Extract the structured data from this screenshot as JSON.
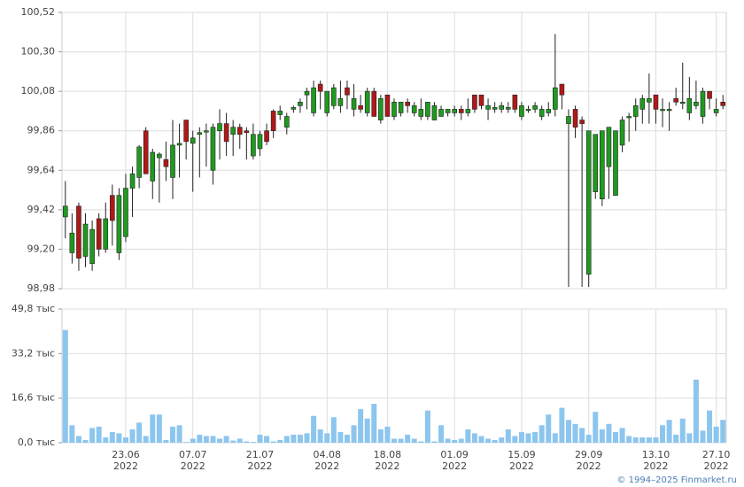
{
  "chart_data": [
    {
      "type": "candlestick",
      "categories": [
        null,
        null,
        null,
        null,
        null,
        null,
        null,
        null,
        null,
        "23.06",
        null,
        null,
        null,
        null,
        null,
        null,
        null,
        null,
        null,
        "07.07",
        null,
        null,
        null,
        null,
        null,
        null,
        null,
        null,
        null,
        "21.07",
        null,
        null,
        null,
        null,
        null,
        null,
        null,
        null,
        null,
        "04.08",
        null,
        null,
        null,
        null,
        null,
        null,
        null,
        null,
        "18.08",
        null,
        null,
        null,
        null,
        null,
        null,
        null,
        null,
        null,
        "01.09",
        null,
        null,
        null,
        null,
        null,
        null,
        null,
        null,
        null,
        "15.09",
        null,
        null,
        null,
        null,
        null,
        null,
        null,
        null,
        null,
        "29.09",
        null,
        null,
        null,
        null,
        null,
        null,
        null,
        null,
        null,
        "13.10",
        null,
        null,
        null,
        null,
        null,
        null,
        null,
        null,
        "27.10",
        null
      ],
      "category_years": [
        null,
        null,
        null,
        null,
        null,
        null,
        null,
        null,
        null,
        "2022",
        null,
        null,
        null,
        null,
        null,
        null,
        null,
        null,
        null,
        "2022",
        null,
        null,
        null,
        null,
        null,
        null,
        null,
        null,
        null,
        "2022",
        null,
        null,
        null,
        null,
        null,
        null,
        null,
        null,
        null,
        "2022",
        null,
        null,
        null,
        null,
        null,
        null,
        null,
        null,
        "2022",
        null,
        null,
        null,
        null,
        null,
        null,
        null,
        null,
        null,
        "2022",
        null,
        null,
        null,
        null,
        null,
        null,
        null,
        null,
        null,
        "2022",
        null,
        null,
        null,
        null,
        null,
        null,
        null,
        null,
        null,
        "2022",
        null,
        null,
        null,
        null,
        null,
        null,
        null,
        null,
        null,
        "2022",
        null,
        null,
        null,
        null,
        null,
        null,
        null,
        null,
        "2022",
        null
      ],
      "open": [
        99.38,
        99.18,
        99.44,
        99.16,
        99.12,
        99.37,
        99.2,
        99.5,
        99.18,
        99.27,
        99.54,
        99.6,
        99.86,
        99.58,
        99.71,
        99.7,
        99.6,
        99.78,
        99.92,
        99.79,
        99.84,
        99.86,
        99.64,
        99.86,
        99.9,
        99.84,
        99.88,
        99.86,
        99.72,
        99.76,
        99.86,
        99.97,
        99.95,
        99.88,
        99.98,
        100.0,
        100.06,
        99.96,
        100.12,
        99.96,
        100.0,
        100.0,
        100.1,
        99.98,
        100.0,
        99.96,
        100.08,
        99.92,
        100.06,
        99.94,
        99.96,
        100.02,
        99.96,
        99.94,
        99.94,
        99.92,
        99.94,
        99.96,
        99.96,
        99.98,
        99.96,
        100.06,
        100.06,
        99.98,
        99.98,
        99.98,
        99.98,
        100.06,
        99.94,
        99.98,
        99.98,
        99.94,
        99.96,
        99.98,
        100.12,
        99.9,
        99.98,
        99.92,
        99.06,
        99.52,
        99.48,
        99.66,
        99.5,
        99.78,
        99.94,
        99.94,
        99.98,
        100.02,
        100.06,
        99.98,
        99.98,
        100.04,
        100.02,
        99.96,
        100.0,
        99.94,
        100.08,
        99.96,
        100.02
      ],
      "high": [
        99.58,
        99.4,
        99.46,
        99.4,
        99.36,
        99.4,
        99.46,
        99.56,
        99.54,
        99.62,
        99.66,
        99.78,
        99.88,
        99.76,
        99.74,
        99.8,
        99.92,
        99.9,
        99.92,
        99.86,
        99.88,
        99.9,
        99.9,
        99.98,
        99.96,
        99.92,
        99.9,
        99.88,
        99.9,
        99.86,
        99.9,
        99.98,
        100.0,
        99.96,
        100.0,
        100.04,
        100.1,
        100.14,
        100.14,
        100.08,
        100.12,
        100.14,
        100.14,
        100.12,
        100.06,
        100.1,
        100.1,
        100.06,
        100.06,
        100.04,
        100.02,
        100.04,
        100.02,
        100.04,
        100.02,
        100.02,
        100.0,
        99.98,
        100.0,
        100.0,
        100.04,
        100.06,
        100.06,
        100.04,
        100.02,
        100.02,
        100.02,
        100.06,
        100.02,
        100.0,
        100.02,
        100.0,
        100.02,
        100.4,
        100.12,
        99.98,
        100.0,
        99.94,
        99.86,
        99.84,
        99.86,
        99.88,
        99.86,
        99.94,
        99.96,
        100.04,
        100.06,
        100.18,
        100.06,
        100.04,
        100.02,
        100.1,
        100.24,
        100.16,
        100.14,
        100.1,
        100.08,
        100.04,
        100.06
      ],
      "low": [
        99.26,
        99.12,
        99.08,
        99.1,
        99.08,
        99.16,
        99.18,
        99.22,
        99.14,
        99.24,
        99.38,
        99.54,
        99.62,
        99.48,
        99.46,
        99.58,
        99.48,
        99.6,
        99.7,
        99.52,
        99.6,
        99.66,
        99.56,
        99.7,
        99.72,
        99.72,
        99.76,
        99.7,
        99.7,
        99.72,
        99.78,
        99.82,
        99.92,
        99.84,
        99.96,
        99.96,
        99.98,
        99.94,
        99.98,
        99.94,
        99.98,
        99.96,
        99.98,
        99.94,
        99.96,
        99.94,
        99.94,
        99.9,
        99.94,
        99.92,
        99.94,
        99.96,
        99.94,
        99.92,
        99.92,
        99.92,
        99.94,
        99.94,
        99.94,
        99.92,
        99.94,
        99.96,
        99.98,
        99.92,
        99.96,
        99.96,
        99.96,
        99.96,
        99.92,
        99.96,
        99.96,
        99.92,
        99.94,
        99.94,
        99.98,
        98.99,
        99.82,
        98.99,
        98.99,
        99.48,
        99.44,
        99.48,
        99.5,
        99.74,
        99.8,
        99.86,
        99.9,
        99.9,
        99.9,
        99.88,
        99.86,
        100.0,
        99.98,
        99.92,
        99.98,
        99.9,
        99.98,
        99.94,
        99.98
      ],
      "close": [
        99.44,
        99.29,
        99.15,
        99.34,
        99.31,
        99.2,
        99.37,
        99.36,
        99.5,
        99.54,
        99.62,
        99.77,
        99.62,
        99.74,
        99.73,
        99.66,
        99.78,
        99.79,
        99.8,
        99.82,
        99.85,
        99.86,
        99.88,
        99.9,
        99.8,
        99.88,
        99.84,
        99.85,
        99.84,
        99.84,
        99.8,
        99.86,
        99.97,
        99.94,
        99.99,
        100.02,
        100.08,
        100.1,
        100.08,
        100.08,
        100.1,
        100.04,
        100.06,
        100.04,
        99.98,
        100.08,
        99.94,
        100.04,
        99.94,
        100.02,
        100.02,
        100.0,
        100.0,
        99.98,
        100.02,
        100.0,
        99.98,
        99.98,
        99.98,
        99.96,
        99.98,
        99.98,
        100.0,
        100.0,
        99.99,
        100.0,
        99.99,
        99.98,
        100.0,
        99.98,
        100.0,
        99.98,
        99.98,
        100.1,
        100.06,
        99.94,
        99.88,
        99.9,
        99.86,
        99.84,
        99.86,
        99.88,
        99.86,
        99.92,
        99.94,
        100.0,
        100.04,
        100.04,
        99.98,
        99.98,
        99.98,
        100.02,
        100.02,
        100.04,
        100.02,
        100.08,
        100.04,
        99.98,
        100.0
      ],
      "up_color": "#1f9a1f",
      "down_color": "#b01818",
      "ylim": [
        98.98,
        100.52
      ],
      "yticks": [
        {
          "value": 98.98,
          "label": "98,98"
        },
        {
          "value": 99.2,
          "label": "99,20"
        },
        {
          "value": 99.42,
          "label": "99,42"
        },
        {
          "value": 99.64,
          "label": "99,64"
        },
        {
          "value": 99.86,
          "label": "99,86"
        },
        {
          "value": 100.08,
          "label": "100,08"
        },
        {
          "value": 100.3,
          "label": "100,30"
        },
        {
          "value": 100.52,
          "label": "100,52"
        }
      ],
      "grid": true
    },
    {
      "type": "bar",
      "values": [
        42,
        6.5,
        2.5,
        1,
        5.5,
        6,
        2,
        4,
        3.5,
        2,
        5,
        7.5,
        2.5,
        10.5,
        10.5,
        1,
        6,
        6.5,
        0.3,
        1.5,
        3,
        2.5,
        2.5,
        1.5,
        2.5,
        0.8,
        1.5,
        0.5,
        0.3,
        3,
        2.5,
        0.5,
        1,
        2.5,
        3,
        3,
        3.5,
        10,
        5,
        3.5,
        9.5,
        4,
        3,
        6.5,
        12.5,
        9,
        14.5,
        5,
        6,
        1.5,
        1.5,
        3,
        1.5,
        0.5,
        12,
        0.5,
        6.5,
        1.5,
        1,
        1.5,
        5,
        3.5,
        2.5,
        1.5,
        1,
        2,
        5,
        2.5,
        4,
        3.5,
        4,
        6.5,
        10.5,
        3.5,
        13,
        8.5,
        7,
        5.5,
        3,
        11.5,
        5,
        7,
        4,
        5.5,
        2.5,
        2,
        2,
        2,
        2,
        6.5,
        8.5,
        3,
        9,
        3.5,
        23.5,
        4.5,
        12,
        6,
        8.5
      ],
      "color": "#8cc6ee",
      "ylim": [
        0,
        49.8
      ],
      "yticks": [
        {
          "value": 0,
          "label": "0,0 тыс"
        },
        {
          "value": 16.6,
          "label": "16,6 тыс"
        },
        {
          "value": 33.2,
          "label": "33,2 тыс"
        },
        {
          "value": 49.8,
          "label": "49,8 тыс"
        }
      ],
      "grid": true
    }
  ],
  "footer": {
    "copyright": "© 1994–2025 Finmarket.ru"
  }
}
